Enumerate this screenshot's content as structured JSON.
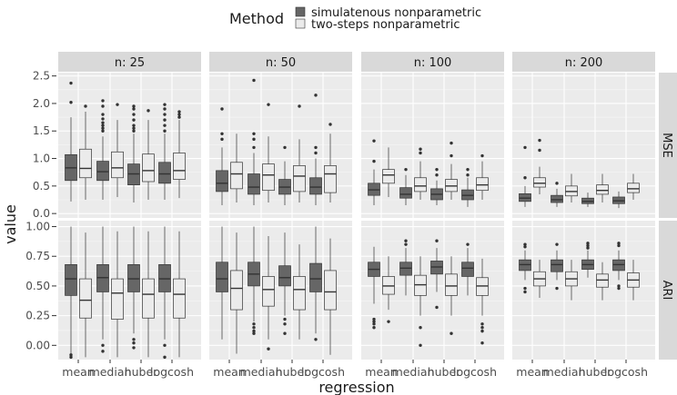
{
  "chart_data": {
    "type": "boxplot",
    "xlabel": "regression",
    "ylabel": "value",
    "legend": {
      "title": "Method",
      "position": "top",
      "entries": [
        "simulatenous nonparametric",
        "two-steps nonparametric"
      ]
    },
    "colors": {
      "simulatenous nonparametric": "#666666",
      "two-steps nonparametric": "#ebebeb",
      "panel": "#ebebeb",
      "strip": "#d9d9d9",
      "grid": "#ffffff"
    },
    "facet_columns": [
      "n: 25",
      "n: 50",
      "n: 100",
      "n: 200"
    ],
    "facet_rows": [
      {
        "label": "MSE",
        "ylim": [
          -0.08,
          2.56
        ],
        "yticks": [
          0.0,
          0.5,
          1.0,
          1.5,
          2.0,
          2.5
        ],
        "ytick_labels": [
          "0.0",
          "0.5",
          "1.0",
          "1.5",
          "2.0",
          "2.5"
        ]
      },
      {
        "label": "ARI",
        "ylim": [
          -0.12,
          1.05
        ],
        "yticks": [
          0.0,
          0.25,
          0.5,
          0.75,
          1.0
        ],
        "ytick_labels": [
          "0.00",
          "0.25",
          "0.50",
          "0.75",
          "1.00"
        ]
      }
    ],
    "categories": [
      "mean",
      "median",
      "huber",
      "logcosh"
    ],
    "series": [
      "simulatenous nonparametric",
      "two-steps nonparametric"
    ],
    "boxes": {
      "MSE": {
        "n: 25": {
          "simulatenous nonparametric": [
            {
              "min": 0.22,
              "q1": 0.6,
              "median": 0.83,
              "q3": 1.07,
              "max": 1.75,
              "outliers": [
                2.02,
                2.37
              ]
            },
            {
              "min": 0.25,
              "q1": 0.6,
              "median": 0.76,
              "q3": 0.95,
              "max": 1.4,
              "outliers": [
                1.5,
                1.55,
                1.6,
                1.65,
                1.72,
                1.8,
                1.95,
                2.05
              ]
            },
            {
              "min": 0.2,
              "q1": 0.52,
              "median": 0.72,
              "q3": 0.9,
              "max": 1.45,
              "outliers": [
                1.5,
                1.55,
                1.6,
                1.7,
                1.8,
                1.9,
                1.95
              ]
            },
            {
              "min": 0.25,
              "q1": 0.55,
              "median": 0.72,
              "q3": 0.93,
              "max": 1.45,
              "outliers": [
                1.5,
                1.6,
                1.7,
                1.8,
                1.9,
                1.98
              ]
            }
          ],
          "two-steps nonparametric": [
            {
              "min": 0.25,
              "q1": 0.65,
              "median": 0.82,
              "q3": 1.17,
              "max": 1.85,
              "outliers": [
                1.95
              ]
            },
            {
              "min": 0.3,
              "q1": 0.65,
              "median": 0.83,
              "q3": 1.12,
              "max": 1.7,
              "outliers": [
                1.98
              ]
            },
            {
              "min": 0.25,
              "q1": 0.58,
              "median": 0.78,
              "q3": 1.08,
              "max": 1.7,
              "outliers": [
                1.87
              ]
            },
            {
              "min": 0.28,
              "q1": 0.62,
              "median": 0.78,
              "q3": 1.1,
              "max": 1.7,
              "outliers": [
                1.75,
                1.8,
                1.85
              ]
            }
          ]
        },
        "n: 50": {
          "simulatenous nonparametric": [
            {
              "min": 0.15,
              "q1": 0.4,
              "median": 0.55,
              "q3": 0.78,
              "max": 1.2,
              "outliers": [
                1.35,
                1.45,
                1.9
              ]
            },
            {
              "min": 0.15,
              "q1": 0.35,
              "median": 0.48,
              "q3": 0.72,
              "max": 1.1,
              "outliers": [
                1.2,
                1.35,
                1.45,
                2.42
              ]
            },
            {
              "min": 0.15,
              "q1": 0.35,
              "median": 0.48,
              "q3": 0.62,
              "max": 0.95,
              "outliers": [
                1.2
              ]
            },
            {
              "min": 0.15,
              "q1": 0.35,
              "median": 0.48,
              "q3": 0.65,
              "max": 1.0,
              "outliers": [
                1.1,
                1.2,
                2.15
              ]
            }
          ],
          "two-steps nonparametric": [
            {
              "min": 0.2,
              "q1": 0.45,
              "median": 0.72,
              "q3": 0.93,
              "max": 1.45,
              "outliers": []
            },
            {
              "min": 0.2,
              "q1": 0.42,
              "median": 0.7,
              "q3": 0.9,
              "max": 1.4,
              "outliers": [
                1.98
              ]
            },
            {
              "min": 0.2,
              "q1": 0.4,
              "median": 0.68,
              "q3": 0.87,
              "max": 1.35,
              "outliers": [
                1.95
              ]
            },
            {
              "min": 0.2,
              "q1": 0.38,
              "median": 0.72,
              "q3": 0.87,
              "max": 1.45,
              "outliers": [
                1.62
              ]
            }
          ]
        },
        "n: 100": {
          "simulatenous nonparametric": [
            {
              "min": 0.15,
              "q1": 0.33,
              "median": 0.43,
              "q3": 0.55,
              "max": 0.8,
              "outliers": [
                0.95,
                1.32
              ]
            },
            {
              "min": 0.15,
              "q1": 0.28,
              "median": 0.35,
              "q3": 0.47,
              "max": 0.7,
              "outliers": [
                0.8
              ]
            },
            {
              "min": 0.15,
              "q1": 0.25,
              "median": 0.35,
              "q3": 0.45,
              "max": 0.6,
              "outliers": [
                0.7,
                0.8
              ]
            },
            {
              "min": 0.12,
              "q1": 0.25,
              "median": 0.33,
              "q3": 0.43,
              "max": 0.65,
              "outliers": [
                0.7,
                0.8
              ]
            }
          ],
          "two-steps nonparametric": [
            {
              "min": 0.3,
              "q1": 0.55,
              "median": 0.7,
              "q3": 0.8,
              "max": 1.2,
              "outliers": []
            },
            {
              "min": 0.25,
              "q1": 0.4,
              "median": 0.5,
              "q3": 0.65,
              "max": 0.95,
              "outliers": [
                1.1,
                1.17
              ]
            },
            {
              "min": 0.25,
              "q1": 0.4,
              "median": 0.5,
              "q3": 0.62,
              "max": 0.9,
              "outliers": [
                1.05,
                1.28
              ]
            },
            {
              "min": 0.25,
              "q1": 0.42,
              "median": 0.52,
              "q3": 0.65,
              "max": 0.95,
              "outliers": [
                1.05
              ]
            }
          ]
        },
        "n: 200": {
          "simulatenous nonparametric": [
            {
              "min": 0.12,
              "q1": 0.22,
              "median": 0.28,
              "q3": 0.36,
              "max": 0.5,
              "outliers": [
                0.65,
                1.2
              ]
            },
            {
              "min": 0.12,
              "q1": 0.2,
              "median": 0.25,
              "q3": 0.33,
              "max": 0.45,
              "outliers": [
                0.55
              ]
            },
            {
              "min": 0.12,
              "q1": 0.18,
              "median": 0.22,
              "q3": 0.28,
              "max": 0.38,
              "outliers": []
            },
            {
              "min": 0.1,
              "q1": 0.18,
              "median": 0.23,
              "q3": 0.3,
              "max": 0.4,
              "outliers": []
            }
          ],
          "two-steps nonparametric": [
            {
              "min": 0.35,
              "q1": 0.48,
              "median": 0.55,
              "q3": 0.65,
              "max": 0.85,
              "outliers": [
                1.15,
                1.33
              ]
            },
            {
              "min": 0.2,
              "q1": 0.32,
              "median": 0.4,
              "q3": 0.5,
              "max": 0.72,
              "outliers": []
            },
            {
              "min": 0.2,
              "q1": 0.35,
              "median": 0.42,
              "q3": 0.52,
              "max": 0.72,
              "outliers": []
            },
            {
              "min": 0.25,
              "q1": 0.38,
              "median": 0.45,
              "q3": 0.55,
              "max": 0.72,
              "outliers": []
            }
          ]
        }
      },
      "ARI": {
        "n: 25": {
          "simulatenous nonparametric": [
            {
              "min": -0.07,
              "q1": 0.42,
              "median": 0.56,
              "q3": 0.68,
              "max": 1.0,
              "outliers": [
                -0.1,
                -0.08
              ]
            },
            {
              "min": 0.05,
              "q1": 0.45,
              "median": 0.57,
              "q3": 0.68,
              "max": 1.0,
              "outliers": [
                -0.05,
                0.0
              ]
            },
            {
              "min": 0.1,
              "q1": 0.45,
              "median": 0.56,
              "q3": 0.68,
              "max": 1.0,
              "outliers": [
                -0.02,
                0.02,
                0.05
              ]
            },
            {
              "min": 0.05,
              "q1": 0.45,
              "median": 0.56,
              "q3": 0.68,
              "max": 1.0,
              "outliers": [
                -0.1,
                0.0
              ]
            }
          ],
          "two-steps nonparametric": [
            {
              "min": -0.1,
              "q1": 0.23,
              "median": 0.38,
              "q3": 0.56,
              "max": 0.95,
              "outliers": []
            },
            {
              "min": -0.1,
              "q1": 0.22,
              "median": 0.44,
              "q3": 0.56,
              "max": 0.96,
              "outliers": []
            },
            {
              "min": -0.1,
              "q1": 0.23,
              "median": 0.43,
              "q3": 0.56,
              "max": 0.96,
              "outliers": []
            },
            {
              "min": -0.1,
              "q1": 0.23,
              "median": 0.43,
              "q3": 0.56,
              "max": 0.96,
              "outliers": []
            }
          ]
        },
        "n: 50": {
          "simulatenous nonparametric": [
            {
              "min": 0.05,
              "q1": 0.45,
              "median": 0.56,
              "q3": 0.7,
              "max": 1.0,
              "outliers": []
            },
            {
              "min": 0.2,
              "q1": 0.5,
              "median": 0.6,
              "q3": 0.7,
              "max": 1.0,
              "outliers": [
                0.1,
                0.12,
                0.15,
                0.18
              ]
            },
            {
              "min": 0.25,
              "q1": 0.5,
              "median": 0.57,
              "q3": 0.67,
              "max": 0.95,
              "outliers": [
                0.1,
                0.18,
                0.22
              ]
            },
            {
              "min": 0.1,
              "q1": 0.45,
              "median": 0.56,
              "q3": 0.69,
              "max": 1.0,
              "outliers": [
                0.05
              ]
            }
          ],
          "two-steps nonparametric": [
            {
              "min": -0.07,
              "q1": 0.3,
              "median": 0.48,
              "q3": 0.63,
              "max": 0.95,
              "outliers": []
            },
            {
              "min": 0.05,
              "q1": 0.33,
              "median": 0.47,
              "q3": 0.58,
              "max": 0.92,
              "outliers": [
                -0.03
              ]
            },
            {
              "min": 0.05,
              "q1": 0.3,
              "median": 0.47,
              "q3": 0.58,
              "max": 0.85,
              "outliers": []
            },
            {
              "min": -0.08,
              "q1": 0.3,
              "median": 0.45,
              "q3": 0.63,
              "max": 0.9,
              "outliers": []
            }
          ]
        },
        "n: 100": {
          "simulatenous nonparametric": [
            {
              "min": 0.35,
              "q1": 0.58,
              "median": 0.64,
              "q3": 0.7,
              "max": 0.83,
              "outliers": [
                0.15,
                0.18,
                0.2,
                0.22
              ]
            },
            {
              "min": 0.42,
              "q1": 0.59,
              "median": 0.65,
              "q3": 0.7,
              "max": 0.82,
              "outliers": [
                0.85,
                0.88
              ]
            },
            {
              "min": 0.45,
              "q1": 0.6,
              "median": 0.66,
              "q3": 0.71,
              "max": 0.82,
              "outliers": [
                0.32,
                0.88
              ]
            },
            {
              "min": 0.42,
              "q1": 0.58,
              "median": 0.65,
              "q3": 0.7,
              "max": 0.82,
              "outliers": [
                0.85
              ]
            }
          ],
          "two-steps nonparametric": [
            {
              "min": 0.3,
              "q1": 0.43,
              "median": 0.5,
              "q3": 0.58,
              "max": 0.75,
              "outliers": [
                0.2
              ]
            },
            {
              "min": 0.25,
              "q1": 0.42,
              "median": 0.51,
              "q3": 0.59,
              "max": 0.75,
              "outliers": [
                0.0,
                0.15
              ]
            },
            {
              "min": 0.25,
              "q1": 0.42,
              "median": 0.5,
              "q3": 0.6,
              "max": 0.75,
              "outliers": [
                0.1
              ]
            },
            {
              "min": 0.25,
              "q1": 0.42,
              "median": 0.5,
              "q3": 0.57,
              "max": 0.73,
              "outliers": [
                0.02,
                0.12,
                0.15,
                0.18
              ]
            }
          ]
        },
        "n: 200": {
          "simulatenous nonparametric": [
            {
              "min": 0.55,
              "q1": 0.63,
              "median": 0.68,
              "q3": 0.72,
              "max": 0.8,
              "outliers": [
                0.45,
                0.48,
                0.83,
                0.85
              ]
            },
            {
              "min": 0.55,
              "q1": 0.62,
              "median": 0.68,
              "q3": 0.72,
              "max": 0.8,
              "outliers": [
                0.48,
                0.85
              ]
            },
            {
              "min": 0.57,
              "q1": 0.64,
              "median": 0.68,
              "q3": 0.72,
              "max": 0.8,
              "outliers": [
                0.82,
                0.84,
                0.86
              ]
            },
            {
              "min": 0.55,
              "q1": 0.63,
              "median": 0.68,
              "q3": 0.72,
              "max": 0.8,
              "outliers": [
                0.48,
                0.5,
                0.84,
                0.86
              ]
            }
          ],
          "two-steps nonparametric": [
            {
              "min": 0.4,
              "q1": 0.5,
              "median": 0.56,
              "q3": 0.62,
              "max": 0.72,
              "outliers": []
            },
            {
              "min": 0.38,
              "q1": 0.5,
              "median": 0.56,
              "q3": 0.62,
              "max": 0.72,
              "outliers": []
            },
            {
              "min": 0.38,
              "q1": 0.49,
              "median": 0.55,
              "q3": 0.6,
              "max": 0.7,
              "outliers": []
            },
            {
              "min": 0.38,
              "q1": 0.49,
              "median": 0.55,
              "q3": 0.61,
              "max": 0.72,
              "outliers": []
            }
          ]
        }
      }
    }
  }
}
